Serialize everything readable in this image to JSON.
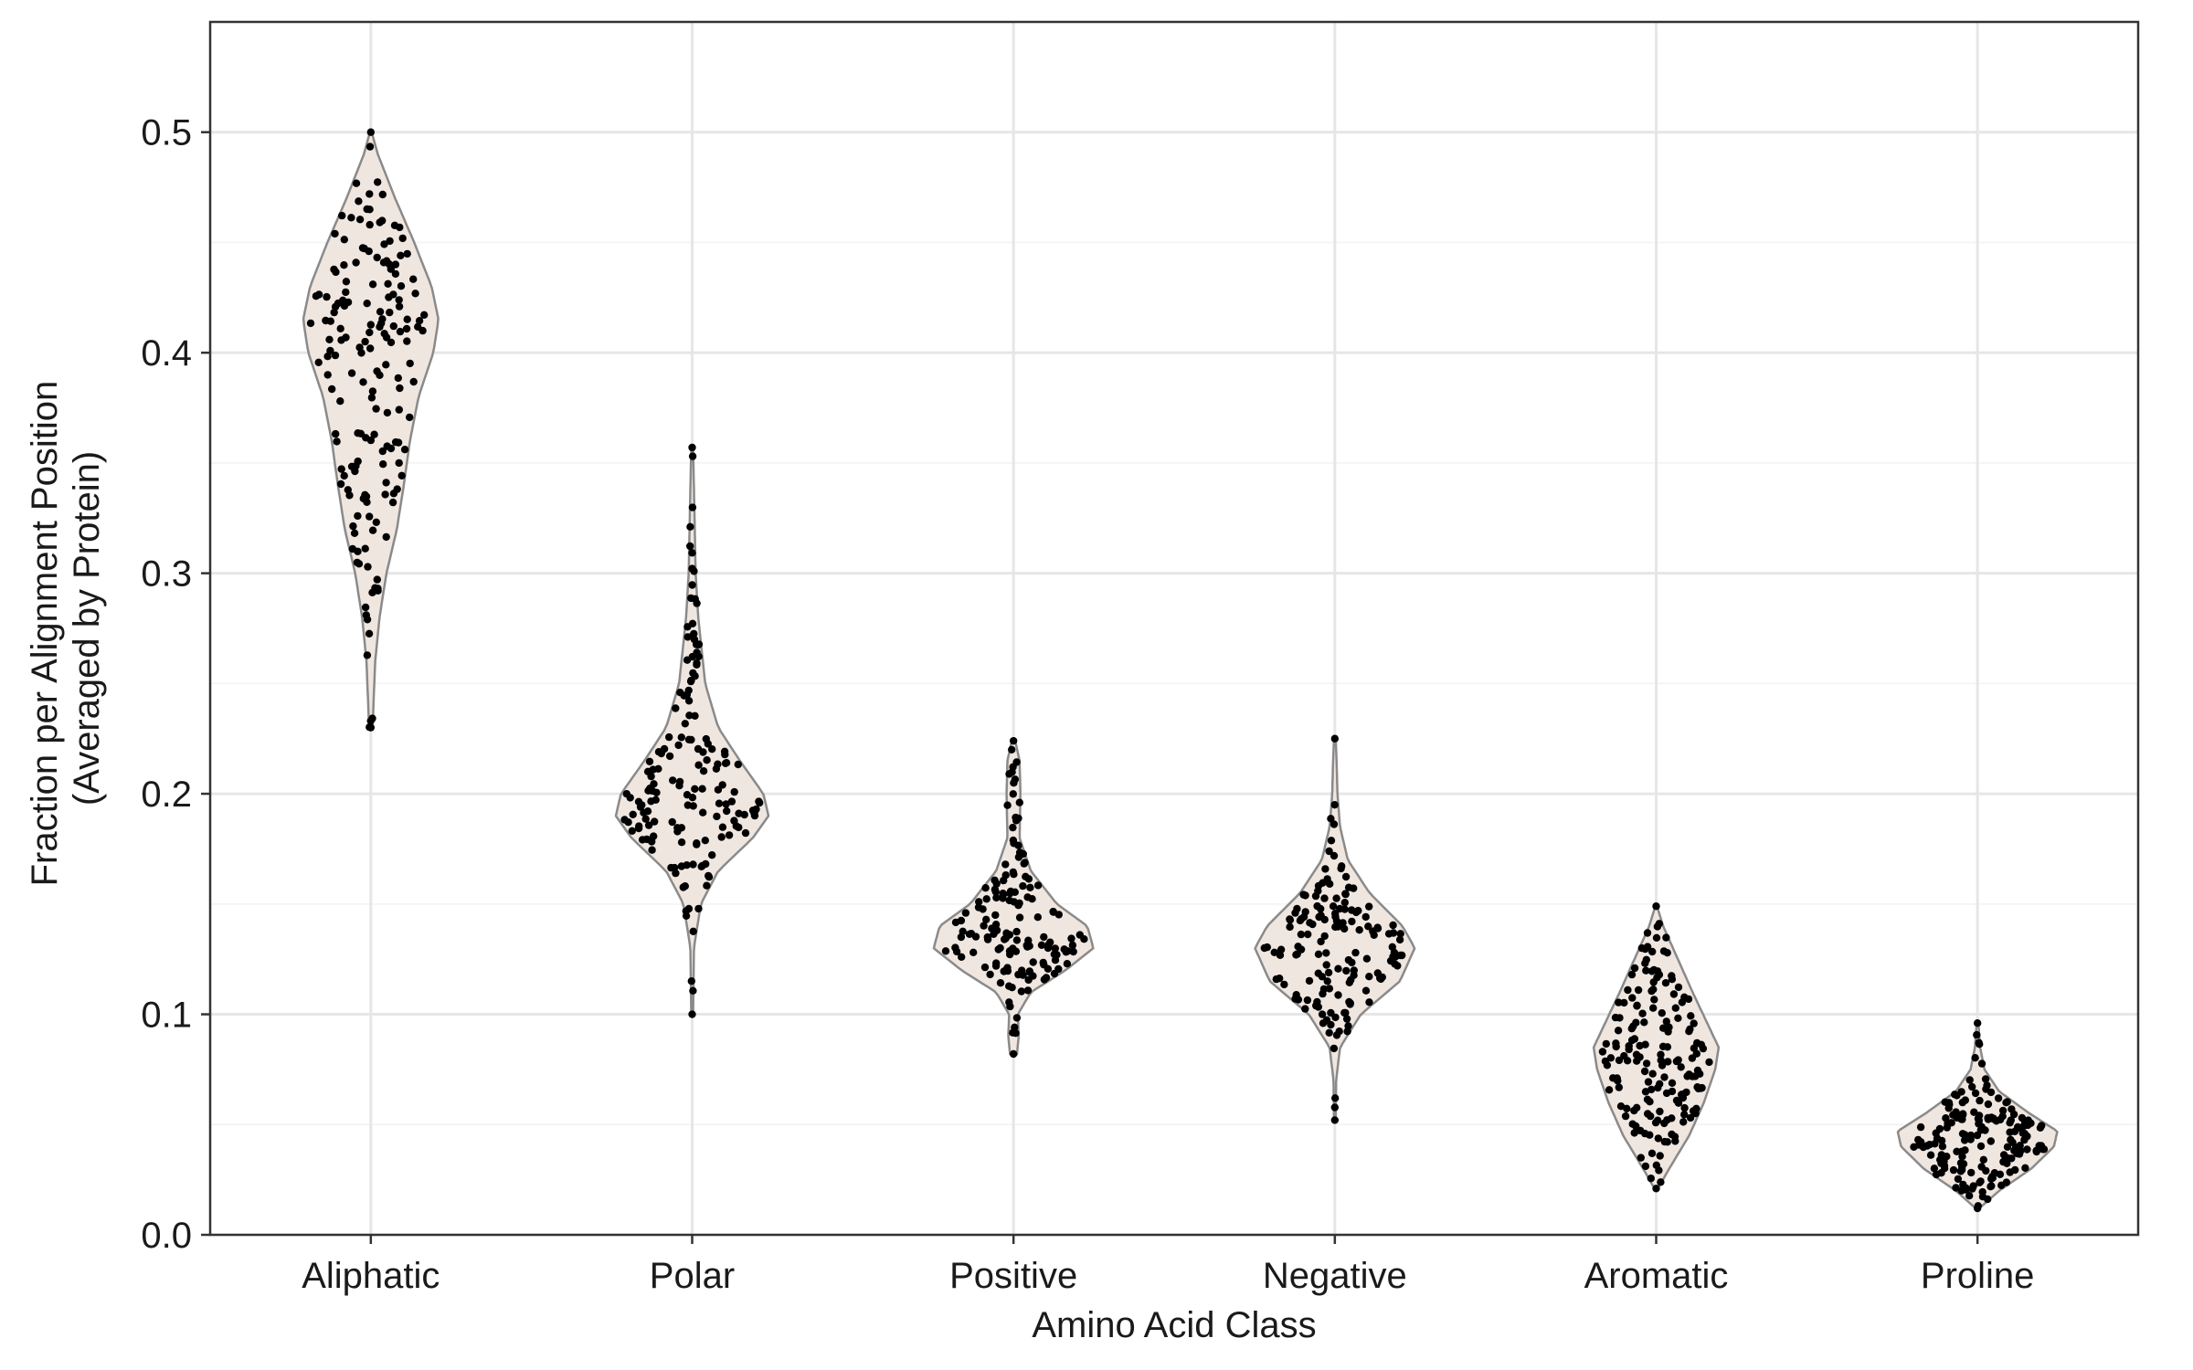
{
  "chart_data": {
    "type": "violin",
    "xlabel": "Amino Acid Class",
    "ylabel": [
      "Fraction per Alignment Position",
      "(Averaged by Protein)"
    ],
    "ylim": [
      0,
      0.55
    ],
    "yticks": [
      0.0,
      0.1,
      0.2,
      0.3,
      0.4,
      0.5
    ],
    "ytick_labels": [
      "0.0",
      "0.1",
      "0.2",
      "0.3",
      "0.4",
      "0.5"
    ],
    "grid": true,
    "legend": false,
    "violin_fill": "#f0e6e0",
    "violin_stroke": "#8a8a8a",
    "point_color": "#000000",
    "grid_color": "#e6e6e6",
    "categories": [
      {
        "name": "Aliphatic",
        "min": 0.23,
        "max": 0.5,
        "n": 170,
        "density": [
          [
            0.23,
            0.02
          ],
          [
            0.26,
            0.05
          ],
          [
            0.28,
            0.1
          ],
          [
            0.3,
            0.18
          ],
          [
            0.32,
            0.3
          ],
          [
            0.34,
            0.38
          ],
          [
            0.36,
            0.45
          ],
          [
            0.38,
            0.55
          ],
          [
            0.4,
            0.72
          ],
          [
            0.415,
            0.78
          ],
          [
            0.43,
            0.7
          ],
          [
            0.45,
            0.5
          ],
          [
            0.47,
            0.28
          ],
          [
            0.49,
            0.08
          ],
          [
            0.5,
            0.01
          ]
        ]
      },
      {
        "name": "Polar",
        "min": 0.1,
        "max": 0.357,
        "n": 160,
        "density": [
          [
            0.1,
            0.01
          ],
          [
            0.13,
            0.02
          ],
          [
            0.15,
            0.1
          ],
          [
            0.165,
            0.3
          ],
          [
            0.18,
            0.7
          ],
          [
            0.19,
            0.88
          ],
          [
            0.2,
            0.82
          ],
          [
            0.215,
            0.55
          ],
          [
            0.23,
            0.3
          ],
          [
            0.25,
            0.15
          ],
          [
            0.28,
            0.07
          ],
          [
            0.3,
            0.04
          ],
          [
            0.33,
            0.025
          ],
          [
            0.357,
            0.01
          ]
        ]
      },
      {
        "name": "Positive",
        "min": 0.082,
        "max": 0.224,
        "n": 150,
        "density": [
          [
            0.082,
            0.04
          ],
          [
            0.09,
            0.06
          ],
          [
            0.1,
            0.05
          ],
          [
            0.11,
            0.2
          ],
          [
            0.12,
            0.6
          ],
          [
            0.13,
            0.92
          ],
          [
            0.14,
            0.85
          ],
          [
            0.15,
            0.5
          ],
          [
            0.165,
            0.2
          ],
          [
            0.18,
            0.07
          ],
          [
            0.2,
            0.08
          ],
          [
            0.215,
            0.07
          ],
          [
            0.224,
            0.02
          ]
        ]
      },
      {
        "name": "Negative",
        "min": 0.052,
        "max": 0.225,
        "n": 150,
        "density": [
          [
            0.052,
            0.01
          ],
          [
            0.07,
            0.015
          ],
          [
            0.085,
            0.06
          ],
          [
            0.1,
            0.3
          ],
          [
            0.115,
            0.75
          ],
          [
            0.13,
            0.92
          ],
          [
            0.14,
            0.78
          ],
          [
            0.155,
            0.4
          ],
          [
            0.17,
            0.15
          ],
          [
            0.185,
            0.06
          ],
          [
            0.2,
            0.03
          ],
          [
            0.215,
            0.02
          ],
          [
            0.225,
            0.01
          ]
        ]
      },
      {
        "name": "Aromatic",
        "min": 0.021,
        "max": 0.149,
        "n": 170,
        "density": [
          [
            0.021,
            0.02
          ],
          [
            0.03,
            0.15
          ],
          [
            0.045,
            0.38
          ],
          [
            0.06,
            0.55
          ],
          [
            0.075,
            0.68
          ],
          [
            0.085,
            0.72
          ],
          [
            0.095,
            0.6
          ],
          [
            0.11,
            0.42
          ],
          [
            0.125,
            0.25
          ],
          [
            0.14,
            0.08
          ],
          [
            0.149,
            0.01
          ]
        ]
      },
      {
        "name": "Proline",
        "min": 0.012,
        "max": 0.096,
        "n": 170,
        "density": [
          [
            0.012,
            0.02
          ],
          [
            0.02,
            0.25
          ],
          [
            0.03,
            0.62
          ],
          [
            0.04,
            0.88
          ],
          [
            0.047,
            0.92
          ],
          [
            0.055,
            0.6
          ],
          [
            0.065,
            0.25
          ],
          [
            0.075,
            0.08
          ],
          [
            0.085,
            0.03
          ],
          [
            0.096,
            0.01
          ]
        ]
      }
    ]
  }
}
